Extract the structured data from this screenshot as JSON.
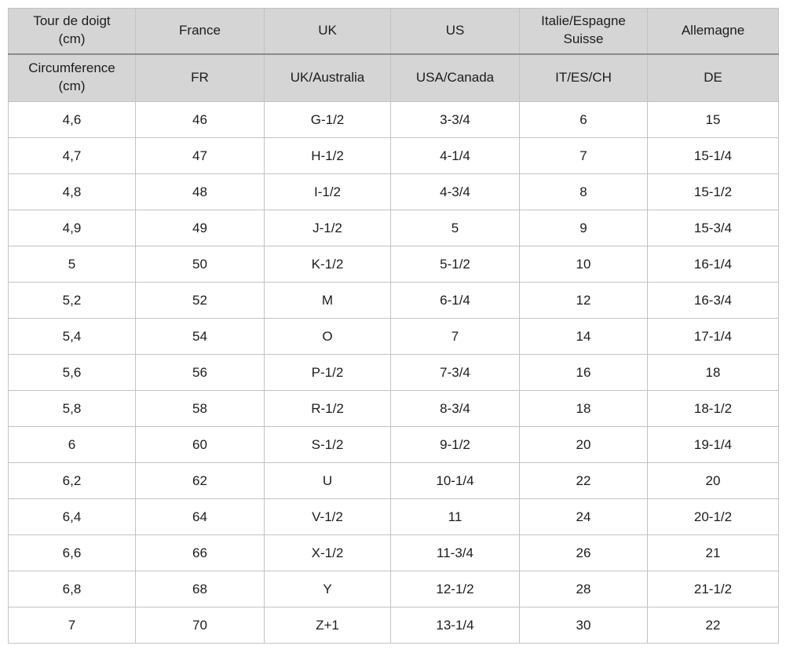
{
  "table": {
    "header": {
      "row1": [
        "Tour de doigt\n(cm)",
        "France",
        "UK",
        "US",
        "Italie/Espagne\nSuisse",
        "Allemagne"
      ],
      "row2": [
        "Circumference\n(cm)",
        "FR",
        "UK/Australia",
        "USA/Canada",
        "IT/ES/CH",
        "DE"
      ]
    },
    "rows": [
      [
        "4,6",
        "46",
        "G-1/2",
        "3-3/4",
        "6",
        "15"
      ],
      [
        "4,7",
        "47",
        "H-1/2",
        "4-1/4",
        "7",
        "15-1/4"
      ],
      [
        "4,8",
        "48",
        "I-1/2",
        "4-3/4",
        "8",
        "15-1/2"
      ],
      [
        "4,9",
        "49",
        "J-1/2",
        "5",
        "9",
        "15-3/4"
      ],
      [
        "5",
        "50",
        "K-1/2",
        "5-1/2",
        "10",
        "16-1/4"
      ],
      [
        "5,2",
        "52",
        "M",
        "6-1/4",
        "12",
        "16-3/4"
      ],
      [
        "5,4",
        "54",
        "O",
        "7",
        "14",
        "17-1/4"
      ],
      [
        "5,6",
        "56",
        "P-1/2",
        "7-3/4",
        "16",
        "18"
      ],
      [
        "5,8",
        "58",
        "R-1/2",
        "8-3/4",
        "18",
        "18-1/2"
      ],
      [
        "6",
        "60",
        "S-1/2",
        "9-1/2",
        "20",
        "19-1/4"
      ],
      [
        "6,2",
        "62",
        "U",
        "10-1/4",
        "22",
        "20"
      ],
      [
        "6,4",
        "64",
        "V-1/2",
        "11",
        "24",
        "20-1/2"
      ],
      [
        "6,6",
        "66",
        "X-1/2",
        "11-3/4",
        "26",
        "21"
      ],
      [
        "6,8",
        "68",
        "Y",
        "12-1/2",
        "28",
        "21-1/2"
      ],
      [
        "7",
        "70",
        "Z+1",
        "13-1/4",
        "30",
        "22"
      ]
    ],
    "colors": {
      "header_background": "#d5d5d5",
      "cell_border": "#c3c3c3",
      "header_separator": "#8a8a8a",
      "text": "#1c1c1c"
    }
  }
}
